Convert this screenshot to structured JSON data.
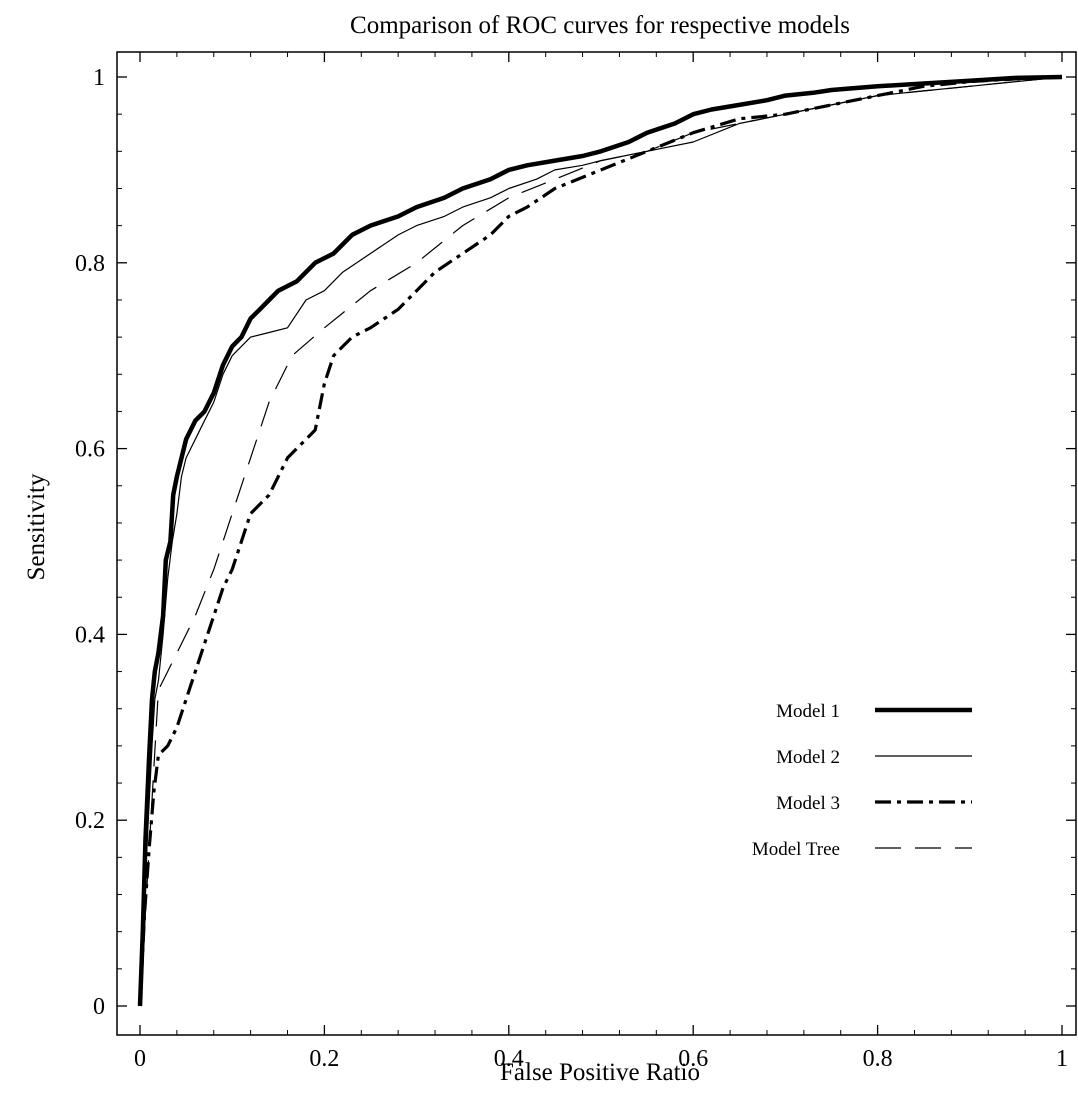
{
  "chart_data": {
    "type": "line",
    "title": "Comparison of ROC curves for respective models",
    "xlabel": "False Positive Ratio",
    "ylabel": "Sensitivity",
    "xlim": [
      0,
      1
    ],
    "ylim": [
      0,
      1
    ],
    "xticks": [
      0,
      0.2,
      0.4,
      0.6,
      0.8,
      1
    ],
    "xtick_labels": [
      "0",
      "0.2",
      "0.4",
      "0.6",
      "0.8",
      "1"
    ],
    "yticks": [
      0,
      0.2,
      0.4,
      0.6,
      0.8,
      1
    ],
    "ytick_labels": [
      "0",
      "0.2",
      "0.4",
      "0.6",
      "0.8",
      "1"
    ],
    "grid": false,
    "legend_position": "bottom-right",
    "series": [
      {
        "name": "Model 1",
        "style": "thick-solid",
        "color": "#000000",
        "x": [
          0,
          0.003,
          0.006,
          0.01,
          0.013,
          0.016,
          0.02,
          0.025,
          0.028,
          0.033,
          0.036,
          0.04,
          0.045,
          0.05,
          0.055,
          0.06,
          0.07,
          0.08,
          0.09,
          0.1,
          0.11,
          0.12,
          0.13,
          0.14,
          0.15,
          0.17,
          0.19,
          0.21,
          0.23,
          0.25,
          0.28,
          0.3,
          0.33,
          0.35,
          0.38,
          0.4,
          0.42,
          0.45,
          0.48,
          0.5,
          0.53,
          0.55,
          0.58,
          0.6,
          0.62,
          0.65,
          0.68,
          0.7,
          0.73,
          0.75,
          0.8,
          0.85,
          0.9,
          0.95,
          1
        ],
        "y": [
          0,
          0.08,
          0.18,
          0.27,
          0.33,
          0.36,
          0.38,
          0.42,
          0.48,
          0.5,
          0.55,
          0.57,
          0.59,
          0.61,
          0.62,
          0.63,
          0.64,
          0.66,
          0.69,
          0.71,
          0.72,
          0.74,
          0.75,
          0.76,
          0.77,
          0.78,
          0.8,
          0.81,
          0.83,
          0.84,
          0.85,
          0.86,
          0.87,
          0.88,
          0.89,
          0.9,
          0.905,
          0.91,
          0.915,
          0.92,
          0.93,
          0.94,
          0.95,
          0.96,
          0.965,
          0.97,
          0.975,
          0.98,
          0.983,
          0.986,
          0.99,
          0.993,
          0.996,
          0.999,
          1
        ]
      },
      {
        "name": "Model 2",
        "style": "thin-solid",
        "color": "#000000",
        "x": [
          0,
          0.003,
          0.006,
          0.01,
          0.013,
          0.016,
          0.02,
          0.025,
          0.03,
          0.035,
          0.04,
          0.045,
          0.05,
          0.06,
          0.07,
          0.08,
          0.09,
          0.1,
          0.12,
          0.14,
          0.16,
          0.18,
          0.2,
          0.22,
          0.25,
          0.28,
          0.3,
          0.33,
          0.35,
          0.38,
          0.4,
          0.43,
          0.45,
          0.48,
          0.5,
          0.55,
          0.6,
          0.65,
          0.7,
          0.75,
          0.8,
          0.85,
          0.9,
          0.95,
          1
        ],
        "y": [
          0,
          0.06,
          0.14,
          0.22,
          0.28,
          0.33,
          0.35,
          0.4,
          0.46,
          0.5,
          0.53,
          0.57,
          0.59,
          0.61,
          0.63,
          0.65,
          0.68,
          0.7,
          0.72,
          0.725,
          0.73,
          0.76,
          0.77,
          0.79,
          0.81,
          0.83,
          0.84,
          0.85,
          0.86,
          0.87,
          0.88,
          0.89,
          0.9,
          0.905,
          0.91,
          0.92,
          0.93,
          0.95,
          0.96,
          0.97,
          0.98,
          0.985,
          0.99,
          0.995,
          1
        ]
      },
      {
        "name": "Model 3",
        "style": "thick-dash-dot",
        "color": "#000000",
        "x": [
          0,
          0.005,
          0.01,
          0.015,
          0.02,
          0.03,
          0.04,
          0.05,
          0.06,
          0.07,
          0.08,
          0.09,
          0.1,
          0.11,
          0.12,
          0.13,
          0.14,
          0.15,
          0.16,
          0.17,
          0.18,
          0.19,
          0.2,
          0.21,
          0.22,
          0.23,
          0.25,
          0.28,
          0.3,
          0.32,
          0.35,
          0.38,
          0.4,
          0.42,
          0.45,
          0.5,
          0.55,
          0.6,
          0.65,
          0.7,
          0.75,
          0.8,
          0.85,
          0.9,
          0.95,
          1
        ],
        "y": [
          0,
          0.1,
          0.17,
          0.23,
          0.27,
          0.28,
          0.3,
          0.33,
          0.36,
          0.39,
          0.42,
          0.45,
          0.47,
          0.5,
          0.53,
          0.54,
          0.55,
          0.57,
          0.59,
          0.6,
          0.61,
          0.62,
          0.67,
          0.7,
          0.71,
          0.72,
          0.73,
          0.75,
          0.77,
          0.79,
          0.81,
          0.83,
          0.85,
          0.86,
          0.88,
          0.9,
          0.92,
          0.94,
          0.955,
          0.96,
          0.97,
          0.98,
          0.99,
          0.995,
          0.998,
          1
        ]
      },
      {
        "name": "Model Tree",
        "style": "thin-dashed",
        "color": "#000000",
        "x": [
          0,
          0.02,
          0.04,
          0.06,
          0.08,
          0.1,
          0.12,
          0.14,
          0.165,
          0.2,
          0.25,
          0.3,
          0.35,
          0.4,
          0.45,
          0.5,
          0.55,
          0.6,
          0.65,
          0.7,
          0.75,
          0.8,
          0.85,
          0.9,
          0.95,
          1
        ],
        "y": [
          0,
          0.34,
          0.38,
          0.42,
          0.47,
          0.53,
          0.59,
          0.65,
          0.7,
          0.73,
          0.77,
          0.8,
          0.84,
          0.87,
          0.89,
          0.91,
          0.92,
          0.94,
          0.95,
          0.96,
          0.97,
          0.98,
          0.985,
          0.99,
          0.995,
          1
        ]
      }
    ]
  }
}
